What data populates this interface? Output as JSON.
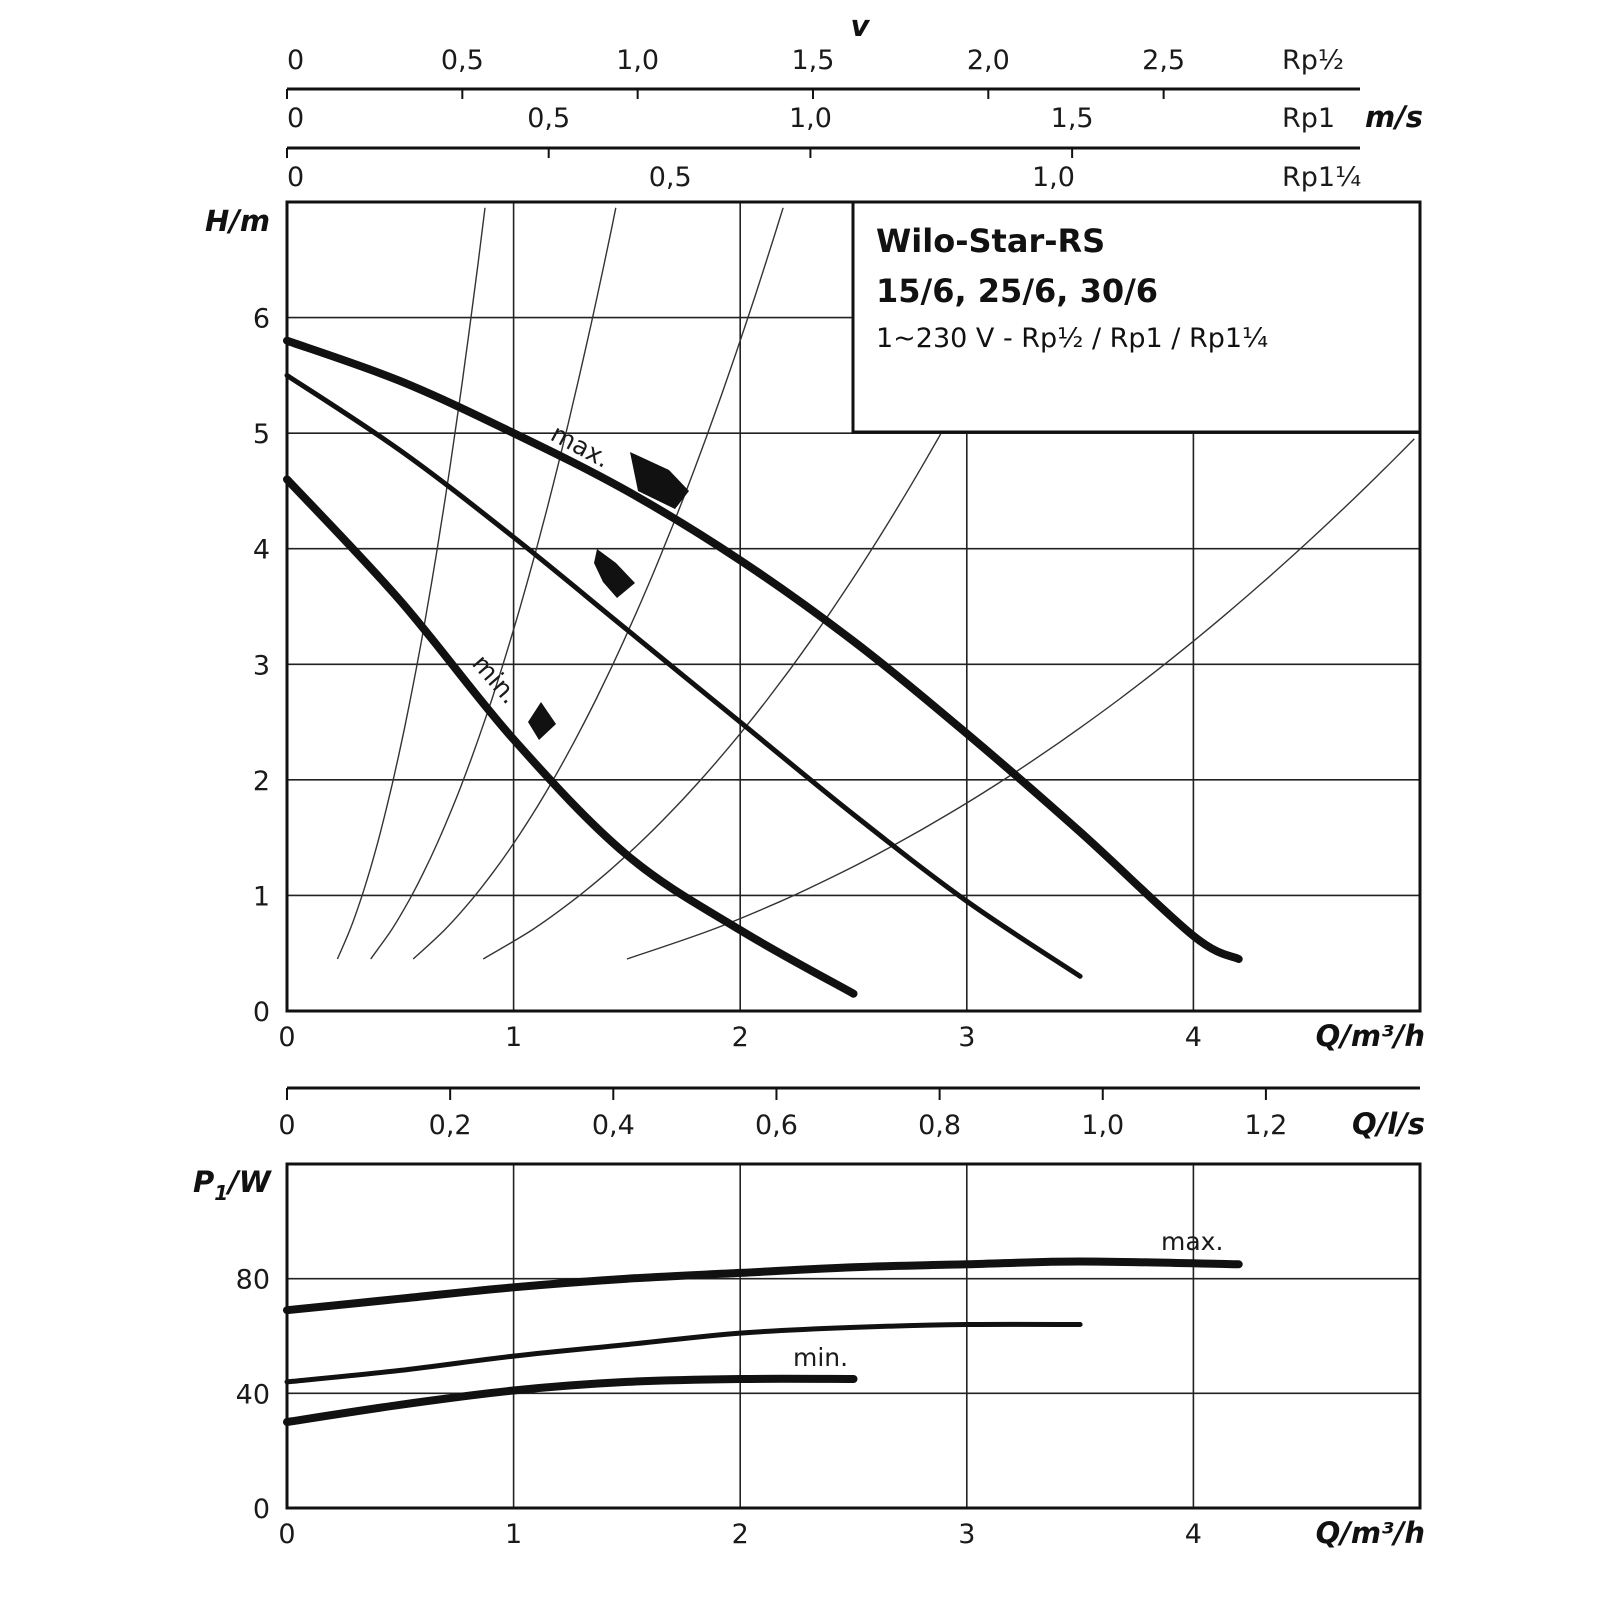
{
  "chart_data": [
    {
      "type": "line",
      "panel": "head",
      "info": {
        "title": "Wilo-Star-RS",
        "models": "15/6, 25/6, 30/6",
        "spec": "1~230 V - Rp½ / Rp1 / Rp1¼"
      },
      "ylabel": "H/m",
      "xlabel": "Q/m³/h",
      "xlim": [
        0,
        5
      ],
      "ylim": [
        0,
        7
      ],
      "xticks": [
        "0",
        "1",
        "2",
        "3",
        "4"
      ],
      "yticks": [
        "0",
        "1",
        "2",
        "3",
        "4",
        "5",
        "6"
      ],
      "grid": true,
      "series": [
        {
          "name": "max.",
          "x": [
            0,
            0.5,
            1.0,
            1.5,
            2.0,
            2.5,
            3.0,
            3.5,
            4.0,
            4.2
          ],
          "y": [
            5.8,
            5.45,
            5.0,
            4.5,
            3.9,
            3.2,
            2.4,
            1.55,
            0.65,
            0.45
          ]
        },
        {
          "name": "",
          "x": [
            0,
            0.5,
            1.0,
            1.5,
            2.0,
            2.5,
            3.0,
            3.5
          ],
          "y": [
            5.5,
            4.85,
            4.1,
            3.3,
            2.5,
            1.7,
            0.95,
            0.3
          ]
        },
        {
          "name": "min.",
          "x": [
            0,
            0.5,
            1.0,
            1.5,
            2.0,
            2.5
          ],
          "y": [
            4.6,
            3.55,
            2.35,
            1.35,
            0.7,
            0.15
          ]
        }
      ],
      "velocity_axes": {
        "title": "v",
        "unit": "m/s",
        "scales": [
          {
            "name": "Rp½",
            "ticks": [
              "0",
              "0,5",
              "1,0",
              "1,5",
              "2,0",
              "2,5"
            ],
            "values": [
              0,
              0.5,
              1.0,
              1.5,
              2.0,
              2.5
            ],
            "max_speed": 3.06
          },
          {
            "name": "Rp1",
            "ticks": [
              "0",
              "0,5",
              "1,0",
              "1,5"
            ],
            "values": [
              0,
              0.5,
              1.0,
              1.5
            ],
            "max_speed": 2.05
          },
          {
            "name": "Rp1¼",
            "ticks": [
              "0",
              "0,5",
              "1,0"
            ],
            "values": [
              0,
              0.5,
              1.0
            ],
            "max_speed": 1.4
          }
        ]
      },
      "flow_ls_axis": {
        "label": "Q/l/s",
        "ticks": [
          "0",
          "0,2",
          "0,4",
          "0,6",
          "0,8",
          "1,0",
          "1,2"
        ],
        "values": [
          0,
          0.2,
          0.4,
          0.6,
          0.8,
          1.0,
          1.2
        ]
      }
    },
    {
      "type": "line",
      "panel": "power",
      "ylabel": "P",
      "ylabel_sub": "1",
      "ylabel_unit": "/W",
      "xlabel": "Q/m³/h",
      "xlim": [
        0,
        5
      ],
      "ylim": [
        0,
        120
      ],
      "xticks": [
        "0",
        "1",
        "2",
        "3",
        "4"
      ],
      "yticks": [
        "0",
        "40",
        "80"
      ],
      "grid": true,
      "series": [
        {
          "name": "max.",
          "x": [
            0,
            0.5,
            1.0,
            1.5,
            2.0,
            2.5,
            3.0,
            3.5,
            4.2
          ],
          "y": [
            69,
            73,
            77,
            80,
            82,
            84,
            85,
            86,
            85
          ]
        },
        {
          "name": "",
          "x": [
            0,
            0.5,
            1.0,
            1.5,
            2.0,
            2.5,
            3.0,
            3.5
          ],
          "y": [
            44,
            48,
            53,
            57,
            61,
            63,
            64,
            64
          ]
        },
        {
          "name": "min.",
          "x": [
            0,
            0.5,
            1.0,
            1.5,
            2.0,
            2.5
          ],
          "y": [
            30,
            36,
            41,
            44,
            45,
            45
          ]
        }
      ]
    }
  ]
}
